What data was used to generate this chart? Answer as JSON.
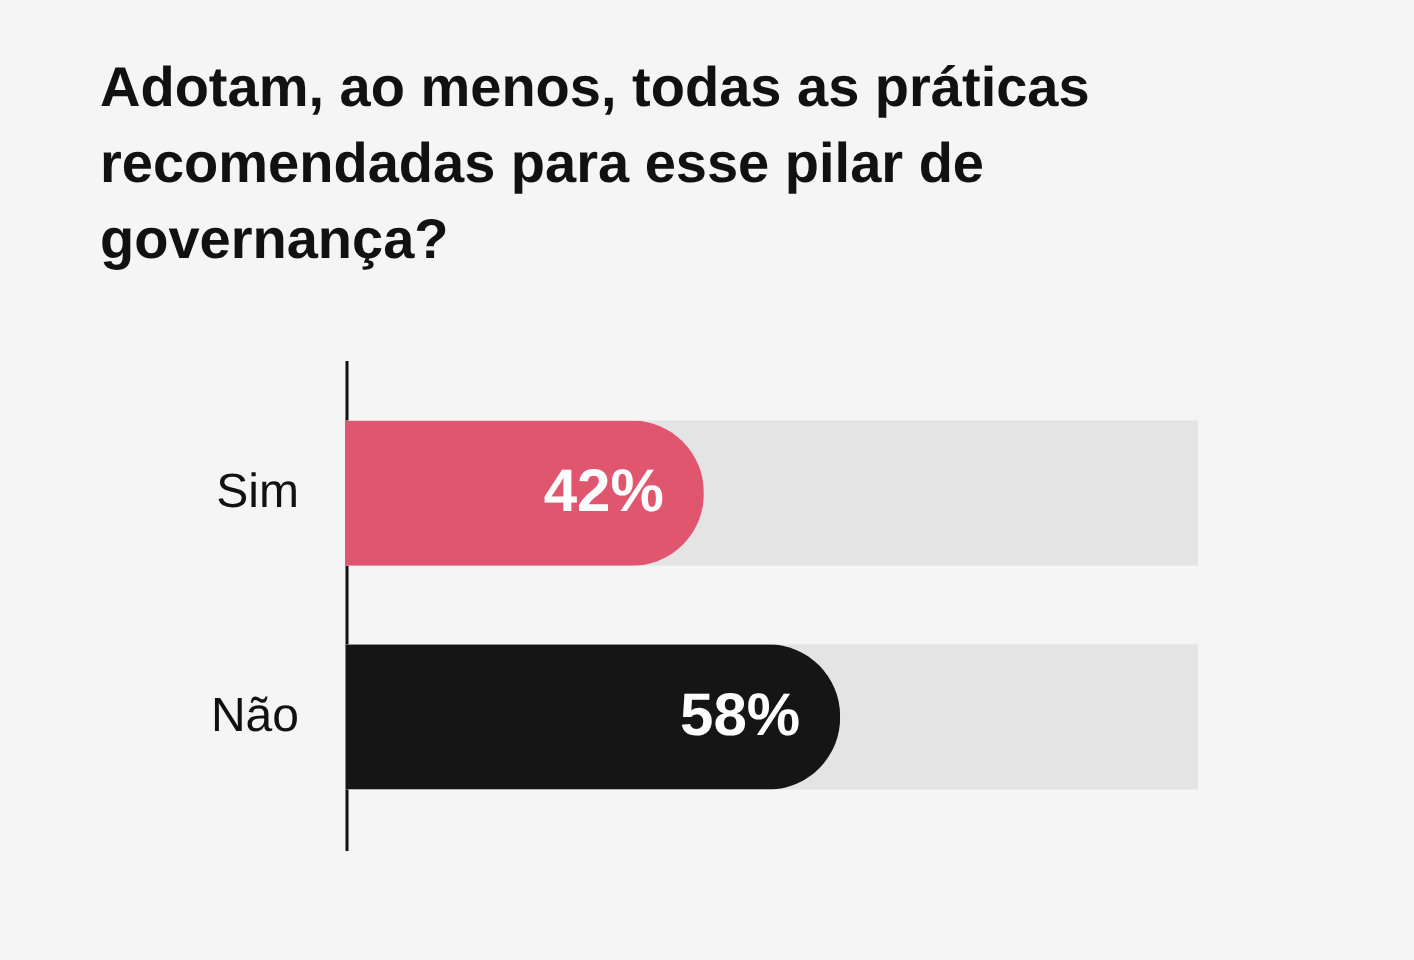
{
  "chart_data": {
    "type": "bar",
    "orientation": "horizontal",
    "title": "Adotam, ao menos, todas as práticas recomendadas para esse pilar de governança?",
    "categories": [
      "Sim",
      "Não"
    ],
    "values": [
      42,
      58
    ],
    "colors": [
      "#e0566e",
      "#151515"
    ],
    "value_labels": [
      "42%",
      "58%"
    ],
    "xlim": [
      0,
      100
    ],
    "bands": [
      {
        "axis": "x",
        "from": 0,
        "to": 100,
        "color": "#e4e4e4"
      }
    ],
    "tick_labels": "y"
  }
}
